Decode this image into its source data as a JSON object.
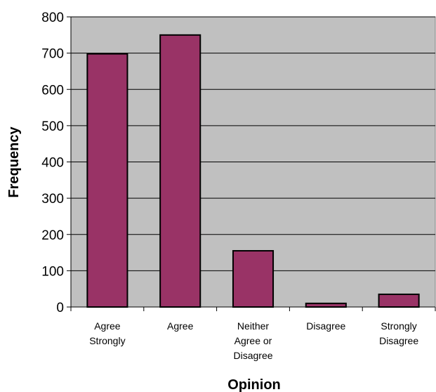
{
  "chart_data": {
    "type": "bar",
    "title": "",
    "xlabel": "Opinion",
    "ylabel": "Frequency",
    "categories": [
      [
        "Agree",
        "Strongly"
      ],
      [
        "Agree"
      ],
      [
        "Neither",
        "Agree or",
        "Disagree"
      ],
      [
        "Disagree"
      ],
      [
        "Strongly",
        "Disagree"
      ]
    ],
    "values": [
      698,
      750,
      155,
      10,
      35
    ],
    "ylim": [
      0,
      800
    ],
    "yticks": [
      0,
      100,
      200,
      300,
      400,
      500,
      600,
      700,
      800
    ],
    "grid": true,
    "legend": "none",
    "colors": {
      "bar": "#993366",
      "plot_background": "#c0c0c0",
      "gridline": "#000000"
    }
  }
}
